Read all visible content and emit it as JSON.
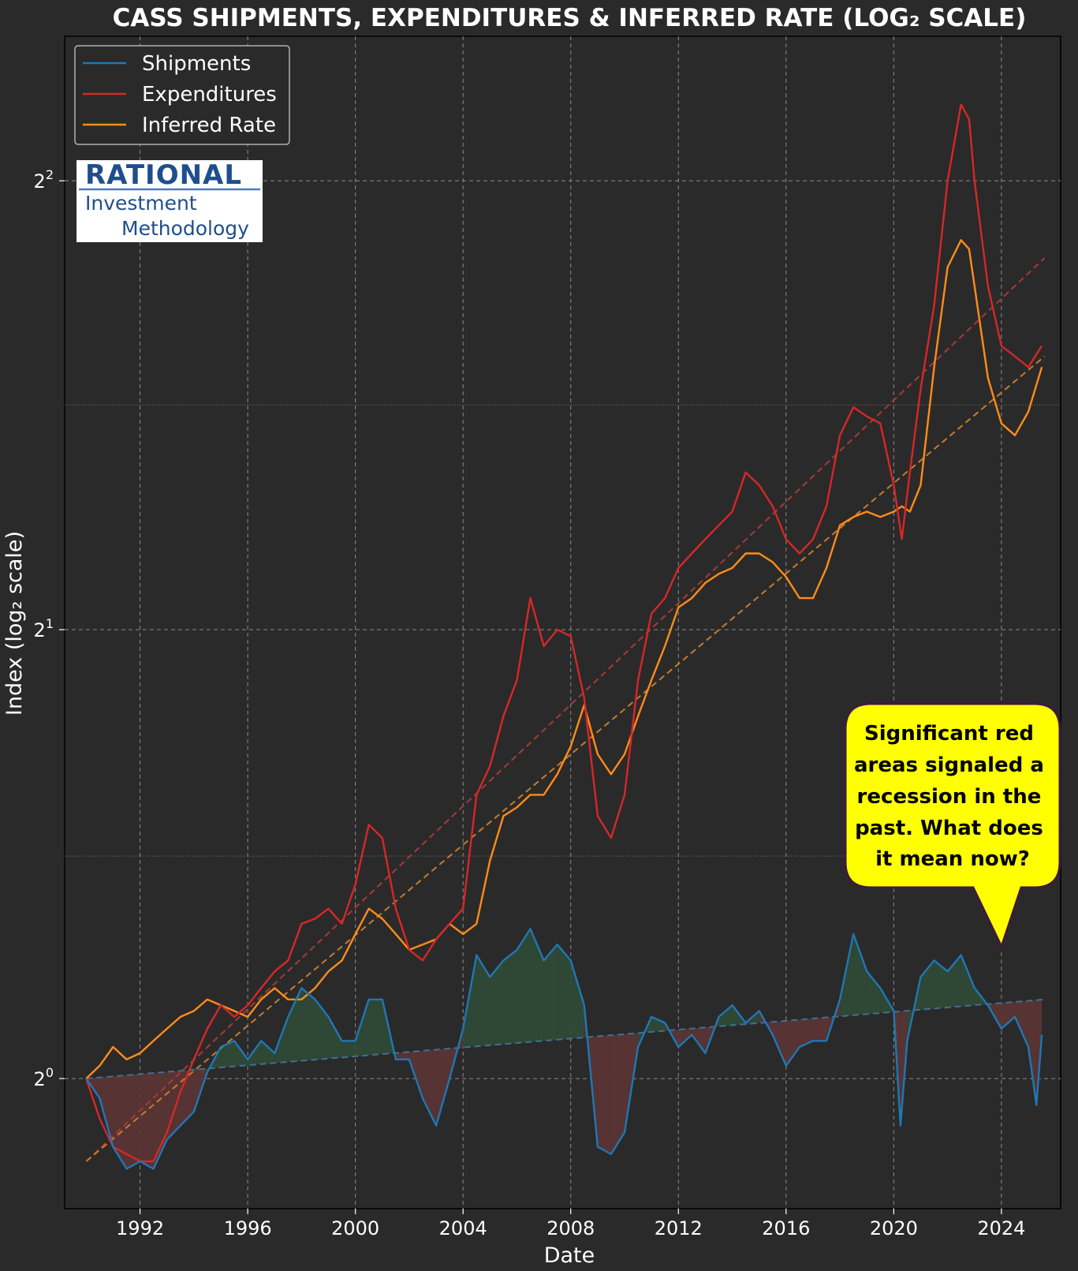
{
  "chart_data": {
    "type": "line",
    "title": "CASS SHIPMENTS, EXPENDITURES & INFERRED RATE (LOG₂ SCALE)",
    "xlabel": "Date",
    "ylabel": "Index (log₂ scale)",
    "yscale": "log2",
    "xlim": [
      1989.2,
      2026.2
    ],
    "ylim": [
      0.818,
      5.0
    ],
    "x_ticks": [
      1992,
      1996,
      2000,
      2004,
      2008,
      2012,
      2016,
      2020,
      2024
    ],
    "y_ticks": [
      {
        "value": 1,
        "label": "2",
        "exp": "0"
      },
      {
        "value": 2,
        "label": "2",
        "exp": "1"
      },
      {
        "value": 4,
        "label": "2",
        "exp": "2"
      }
    ],
    "y_minor_ticks": [
      1.41,
      2.83
    ],
    "grid": true,
    "legend_position": "top-left",
    "colors": {
      "shipments": "#1f77b4",
      "expenditures": "#d62728",
      "inferred_rate": "#ff8c1a",
      "fill_above": "#2e4a36",
      "fill_below": "#5a3434",
      "background": "#2a2a2a"
    },
    "series": [
      {
        "name": "Shipments",
        "key": "shipments",
        "points": [
          [
            1990.0,
            1.0
          ],
          [
            1990.5,
            0.97
          ],
          [
            1991.0,
            0.9
          ],
          [
            1991.5,
            0.87
          ],
          [
            1992.0,
            0.88
          ],
          [
            1992.5,
            0.87
          ],
          [
            1993.0,
            0.91
          ],
          [
            1993.5,
            0.93
          ],
          [
            1994.0,
            0.95
          ],
          [
            1994.5,
            1.01
          ],
          [
            1995.0,
            1.05
          ],
          [
            1995.5,
            1.06
          ],
          [
            1996.0,
            1.03
          ],
          [
            1996.5,
            1.06
          ],
          [
            1997.0,
            1.04
          ],
          [
            1997.5,
            1.1
          ],
          [
            1998.0,
            1.15
          ],
          [
            1998.5,
            1.13
          ],
          [
            1999.0,
            1.1
          ],
          [
            1999.5,
            1.06
          ],
          [
            2000.0,
            1.06
          ],
          [
            2000.5,
            1.13
          ],
          [
            2001.0,
            1.13
          ],
          [
            2001.5,
            1.03
          ],
          [
            2002.0,
            1.03
          ],
          [
            2002.5,
            0.97
          ],
          [
            2003.0,
            0.93
          ],
          [
            2003.5,
            1.0
          ],
          [
            2004.0,
            1.08
          ],
          [
            2004.5,
            1.21
          ],
          [
            2005.0,
            1.17
          ],
          [
            2005.5,
            1.2
          ],
          [
            2006.0,
            1.22
          ],
          [
            2006.5,
            1.26
          ],
          [
            2007.0,
            1.2
          ],
          [
            2007.5,
            1.23
          ],
          [
            2008.0,
            1.2
          ],
          [
            2008.5,
            1.12
          ],
          [
            2009.0,
            0.9
          ],
          [
            2009.5,
            0.89
          ],
          [
            2010.0,
            0.92
          ],
          [
            2010.5,
            1.05
          ],
          [
            2011.0,
            1.1
          ],
          [
            2011.5,
            1.09
          ],
          [
            2012.0,
            1.05
          ],
          [
            2012.5,
            1.07
          ],
          [
            2013.0,
            1.04
          ],
          [
            2013.5,
            1.1
          ],
          [
            2014.0,
            1.12
          ],
          [
            2014.5,
            1.09
          ],
          [
            2015.0,
            1.11
          ],
          [
            2015.5,
            1.07
          ],
          [
            2016.0,
            1.02
          ],
          [
            2016.5,
            1.05
          ],
          [
            2017.0,
            1.06
          ],
          [
            2017.5,
            1.06
          ],
          [
            2018.0,
            1.13
          ],
          [
            2018.5,
            1.25
          ],
          [
            2019.0,
            1.18
          ],
          [
            2019.5,
            1.15
          ],
          [
            2020.0,
            1.11
          ],
          [
            2020.25,
            0.93
          ],
          [
            2020.5,
            1.06
          ],
          [
            2021.0,
            1.17
          ],
          [
            2021.5,
            1.2
          ],
          [
            2022.0,
            1.18
          ],
          [
            2022.5,
            1.21
          ],
          [
            2023.0,
            1.15
          ],
          [
            2023.5,
            1.12
          ],
          [
            2024.0,
            1.08
          ],
          [
            2024.5,
            1.1
          ],
          [
            2025.0,
            1.05
          ],
          [
            2025.3,
            0.96
          ],
          [
            2025.5,
            1.07
          ]
        ]
      },
      {
        "name": "Expenditures",
        "key": "expenditures",
        "points": [
          [
            1990.0,
            1.0
          ],
          [
            1990.5,
            0.94
          ],
          [
            1991.0,
            0.9
          ],
          [
            1991.5,
            0.89
          ],
          [
            1992.0,
            0.88
          ],
          [
            1992.5,
            0.88
          ],
          [
            1993.0,
            0.92
          ],
          [
            1993.5,
            0.98
          ],
          [
            1994.0,
            1.03
          ],
          [
            1994.5,
            1.08
          ],
          [
            1995.0,
            1.12
          ],
          [
            1995.5,
            1.1
          ],
          [
            1996.0,
            1.12
          ],
          [
            1996.5,
            1.15
          ],
          [
            1997.0,
            1.18
          ],
          [
            1997.5,
            1.2
          ],
          [
            1998.0,
            1.27
          ],
          [
            1998.5,
            1.28
          ],
          [
            1999.0,
            1.3
          ],
          [
            1999.5,
            1.27
          ],
          [
            2000.0,
            1.35
          ],
          [
            2000.5,
            1.48
          ],
          [
            2001.0,
            1.45
          ],
          [
            2001.5,
            1.3
          ],
          [
            2002.0,
            1.22
          ],
          [
            2002.5,
            1.2
          ],
          [
            2003.0,
            1.24
          ],
          [
            2003.5,
            1.27
          ],
          [
            2004.0,
            1.3
          ],
          [
            2004.5,
            1.55
          ],
          [
            2005.0,
            1.62
          ],
          [
            2005.5,
            1.75
          ],
          [
            2006.0,
            1.85
          ],
          [
            2006.5,
            2.1
          ],
          [
            2007.0,
            1.95
          ],
          [
            2007.5,
            2.0
          ],
          [
            2008.0,
            1.98
          ],
          [
            2008.5,
            1.8
          ],
          [
            2009.0,
            1.5
          ],
          [
            2009.5,
            1.45
          ],
          [
            2010.0,
            1.55
          ],
          [
            2010.5,
            1.85
          ],
          [
            2011.0,
            2.05
          ],
          [
            2011.5,
            2.1
          ],
          [
            2012.0,
            2.2
          ],
          [
            2012.5,
            2.25
          ],
          [
            2013.0,
            2.3
          ],
          [
            2013.5,
            2.35
          ],
          [
            2014.0,
            2.4
          ],
          [
            2014.5,
            2.55
          ],
          [
            2015.0,
            2.5
          ],
          [
            2015.5,
            2.42
          ],
          [
            2016.0,
            2.3
          ],
          [
            2016.5,
            2.25
          ],
          [
            2017.0,
            2.3
          ],
          [
            2017.5,
            2.42
          ],
          [
            2018.0,
            2.7
          ],
          [
            2018.5,
            2.82
          ],
          [
            2019.0,
            2.78
          ],
          [
            2019.5,
            2.75
          ],
          [
            2020.0,
            2.5
          ],
          [
            2020.3,
            2.3
          ],
          [
            2020.6,
            2.55
          ],
          [
            2021.0,
            2.9
          ],
          [
            2021.5,
            3.3
          ],
          [
            2022.0,
            4.0
          ],
          [
            2022.5,
            4.5
          ],
          [
            2022.8,
            4.4
          ],
          [
            2023.0,
            4.0
          ],
          [
            2023.5,
            3.4
          ],
          [
            2024.0,
            3.1
          ],
          [
            2024.5,
            3.05
          ],
          [
            2025.0,
            3.0
          ],
          [
            2025.5,
            3.1
          ]
        ]
      },
      {
        "name": "Inferred Rate",
        "key": "inferred_rate",
        "points": [
          [
            1990.0,
            1.0
          ],
          [
            1990.5,
            1.02
          ],
          [
            1991.0,
            1.05
          ],
          [
            1991.5,
            1.03
          ],
          [
            1992.0,
            1.04
          ],
          [
            1992.5,
            1.06
          ],
          [
            1993.0,
            1.08
          ],
          [
            1993.5,
            1.1
          ],
          [
            1994.0,
            1.11
          ],
          [
            1994.5,
            1.13
          ],
          [
            1995.0,
            1.12
          ],
          [
            1995.5,
            1.11
          ],
          [
            1996.0,
            1.1
          ],
          [
            1996.5,
            1.13
          ],
          [
            1997.0,
            1.15
          ],
          [
            1997.5,
            1.13
          ],
          [
            1998.0,
            1.13
          ],
          [
            1998.5,
            1.15
          ],
          [
            1999.0,
            1.18
          ],
          [
            1999.5,
            1.2
          ],
          [
            2000.0,
            1.25
          ],
          [
            2000.5,
            1.3
          ],
          [
            2001.0,
            1.28
          ],
          [
            2001.5,
            1.25
          ],
          [
            2002.0,
            1.22
          ],
          [
            2002.5,
            1.23
          ],
          [
            2003.0,
            1.24
          ],
          [
            2003.5,
            1.27
          ],
          [
            2004.0,
            1.25
          ],
          [
            2004.5,
            1.27
          ],
          [
            2005.0,
            1.4
          ],
          [
            2005.5,
            1.5
          ],
          [
            2006.0,
            1.52
          ],
          [
            2006.5,
            1.55
          ],
          [
            2007.0,
            1.55
          ],
          [
            2007.5,
            1.6
          ],
          [
            2008.0,
            1.67
          ],
          [
            2008.5,
            1.78
          ],
          [
            2009.0,
            1.65
          ],
          [
            2009.5,
            1.6
          ],
          [
            2010.0,
            1.65
          ],
          [
            2010.5,
            1.75
          ],
          [
            2011.0,
            1.85
          ],
          [
            2011.5,
            1.95
          ],
          [
            2012.0,
            2.07
          ],
          [
            2012.5,
            2.1
          ],
          [
            2013.0,
            2.15
          ],
          [
            2013.5,
            2.18
          ],
          [
            2014.0,
            2.2
          ],
          [
            2014.5,
            2.25
          ],
          [
            2015.0,
            2.25
          ],
          [
            2015.5,
            2.22
          ],
          [
            2016.0,
            2.17
          ],
          [
            2016.5,
            2.1
          ],
          [
            2017.0,
            2.1
          ],
          [
            2017.5,
            2.2
          ],
          [
            2018.0,
            2.35
          ],
          [
            2018.5,
            2.38
          ],
          [
            2019.0,
            2.4
          ],
          [
            2019.5,
            2.38
          ],
          [
            2020.0,
            2.4
          ],
          [
            2020.3,
            2.42
          ],
          [
            2020.6,
            2.4
          ],
          [
            2021.0,
            2.5
          ],
          [
            2021.5,
            3.0
          ],
          [
            2022.0,
            3.5
          ],
          [
            2022.5,
            3.65
          ],
          [
            2022.8,
            3.6
          ],
          [
            2023.0,
            3.4
          ],
          [
            2023.5,
            2.95
          ],
          [
            2024.0,
            2.75
          ],
          [
            2024.5,
            2.7
          ],
          [
            2025.0,
            2.8
          ],
          [
            2025.5,
            3.0
          ]
        ]
      }
    ],
    "trend_lines": [
      {
        "key": "shipments_trend",
        "from": [
          1990.0,
          1.0
        ],
        "to": [
          2025.6,
          1.13
        ]
      },
      {
        "key": "expenditures_trend",
        "from": [
          1990.0,
          0.88
        ],
        "to": [
          2025.6,
          3.55
        ]
      },
      {
        "key": "inferred_rate_trend",
        "from": [
          1990.0,
          0.88
        ],
        "to": [
          2025.6,
          3.05
        ]
      }
    ],
    "annotation": "Significant red areas signaled a recession in the past. What does it mean now?",
    "logo": {
      "line1": "RATIONAL",
      "line2": "Investment",
      "line3": "Methodology"
    }
  }
}
